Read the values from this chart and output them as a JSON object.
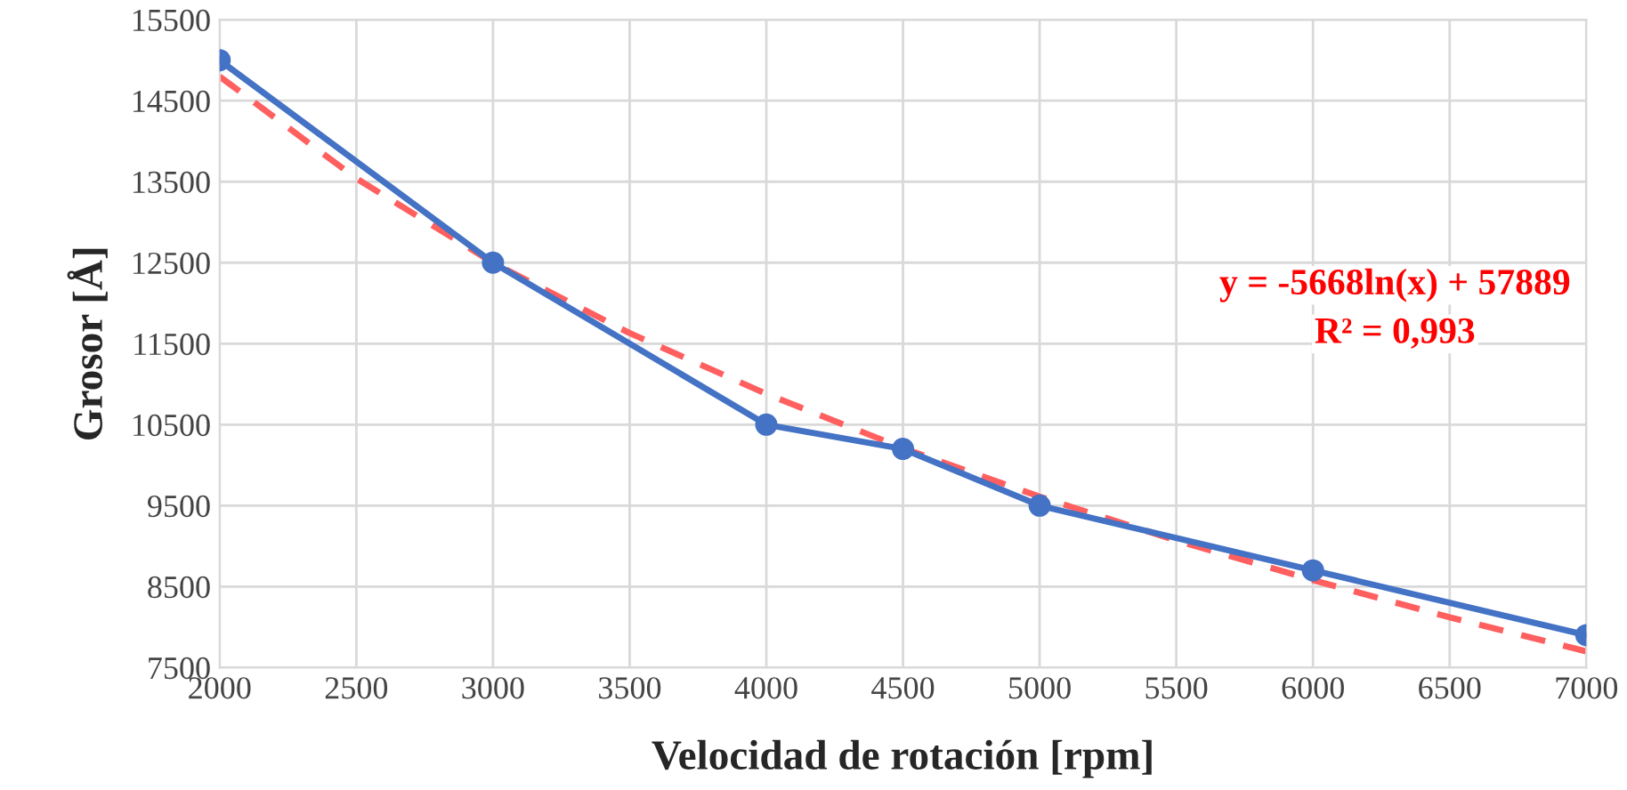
{
  "chart_data": {
    "type": "line",
    "xlabel": "Velocidad de rotación [rpm]",
    "ylabel": "Grosor [Å]",
    "xlim": [
      2000,
      7000
    ],
    "xticks": [
      2000,
      2500,
      3000,
      3500,
      4000,
      4500,
      5000,
      5500,
      6000,
      6500,
      7000
    ],
    "ylim": [
      7500,
      15500
    ],
    "yticks": [
      7500,
      8500,
      9500,
      10500,
      11500,
      12500,
      13500,
      14500,
      15500
    ],
    "grid": true,
    "series": [
      {
        "color": "#4472c4",
        "marker": "circle",
        "line_style": "solid",
        "x": [
          2000,
          3000,
          4000,
          4500,
          5000,
          6000,
          7000
        ],
        "values": [
          15000,
          12500,
          10500,
          10200,
          9500,
          8700,
          7900
        ]
      },
      {
        "color": "#ff5f5f",
        "marker": "none",
        "line_style": "dashed",
        "x": [
          2000,
          2500,
          3000,
          3500,
          4000,
          4500,
          5000,
          5500,
          6000,
          6500,
          7000
        ],
        "values": [
          14800,
          13540,
          12500,
          11630,
          10880,
          10210,
          9610,
          9070,
          8580,
          8120,
          7700
        ]
      }
    ],
    "annotations": [
      "y = -5668ln(x) + 57889",
      "R² = 0,993"
    ]
  }
}
